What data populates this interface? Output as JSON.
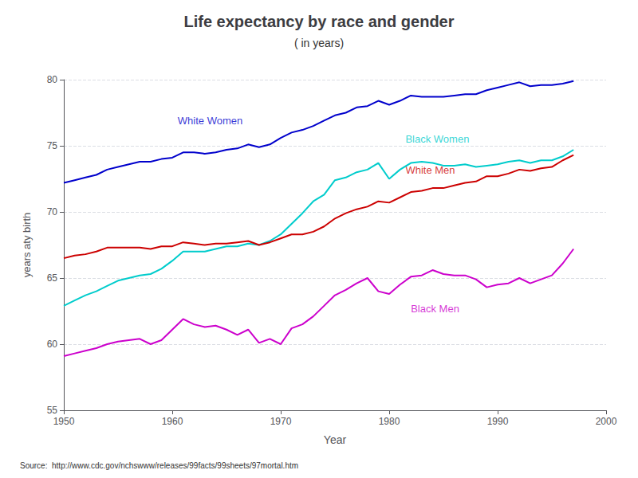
{
  "chart_data": {
    "type": "line",
    "title": "Life expectancy by race and gender",
    "subtitle": "( in years)",
    "xlabel": "Year",
    "ylabel": "years aty birth",
    "source": "Source:  http://www.cdc.gov/nchswww/releases/99facts/99sheets/97mortal.htm",
    "xlim": [
      1950,
      2000
    ],
    "ylim": [
      55,
      80
    ],
    "xticks": [
      1950,
      1960,
      1970,
      1980,
      1990,
      2000
    ],
    "yticks": [
      55,
      60,
      65,
      70,
      75,
      80
    ],
    "grid": true,
    "x": [
      1950,
      1951,
      1952,
      1953,
      1954,
      1955,
      1956,
      1957,
      1958,
      1959,
      1960,
      1961,
      1962,
      1963,
      1964,
      1965,
      1966,
      1967,
      1968,
      1969,
      1970,
      1971,
      1972,
      1973,
      1974,
      1975,
      1976,
      1977,
      1978,
      1979,
      1980,
      1981,
      1982,
      1983,
      1984,
      1985,
      1986,
      1987,
      1988,
      1989,
      1990,
      1991,
      1992,
      1993,
      1994,
      1995,
      1996,
      1997
    ],
    "series": [
      {
        "name": "White Women",
        "color": "#0000CC",
        "values": [
          72.2,
          72.4,
          72.6,
          72.8,
          73.2,
          73.4,
          73.6,
          73.8,
          73.8,
          74.0,
          74.1,
          74.5,
          74.5,
          74.4,
          74.5,
          74.7,
          74.8,
          75.1,
          74.9,
          75.1,
          75.6,
          76.0,
          76.2,
          76.5,
          76.9,
          77.3,
          77.5,
          77.9,
          78.0,
          78.4,
          78.1,
          78.4,
          78.8,
          78.7,
          78.7,
          78.7,
          78.8,
          78.9,
          78.9,
          79.2,
          79.4,
          79.6,
          79.8,
          79.5,
          79.6,
          79.6,
          79.7,
          79.9
        ]
      },
      {
        "name": "Black Women",
        "color": "#00CCCC",
        "values": [
          62.9,
          63.3,
          63.7,
          64.0,
          64.4,
          64.8,
          65.0,
          65.2,
          65.3,
          65.7,
          66.3,
          67.0,
          67.0,
          67.0,
          67.2,
          67.4,
          67.4,
          67.6,
          67.5,
          67.8,
          68.3,
          69.1,
          69.9,
          70.8,
          71.3,
          72.4,
          72.6,
          73.0,
          73.2,
          73.7,
          72.5,
          73.2,
          73.7,
          73.8,
          73.7,
          73.5,
          73.5,
          73.6,
          73.4,
          73.5,
          73.6,
          73.8,
          73.9,
          73.7,
          73.9,
          73.9,
          74.2,
          74.7
        ]
      },
      {
        "name": "White Men",
        "color": "#CC0000",
        "values": [
          66.5,
          66.7,
          66.8,
          67.0,
          67.3,
          67.3,
          67.3,
          67.3,
          67.2,
          67.4,
          67.4,
          67.7,
          67.6,
          67.5,
          67.6,
          67.6,
          67.7,
          67.8,
          67.5,
          67.7,
          68.0,
          68.3,
          68.3,
          68.5,
          68.9,
          69.5,
          69.9,
          70.2,
          70.4,
          70.8,
          70.7,
          71.1,
          71.5,
          71.6,
          71.8,
          71.8,
          72.0,
          72.2,
          72.3,
          72.7,
          72.7,
          72.9,
          73.2,
          73.1,
          73.3,
          73.4,
          73.9,
          74.3
        ]
      },
      {
        "name": "Black Men",
        "color": "#CC00CC",
        "values": [
          59.1,
          59.3,
          59.5,
          59.7,
          60.0,
          60.2,
          60.3,
          60.4,
          60.0,
          60.3,
          61.1,
          61.9,
          61.5,
          61.3,
          61.4,
          61.1,
          60.7,
          61.1,
          60.1,
          60.4,
          60.0,
          61.2,
          61.5,
          62.1,
          62.9,
          63.7,
          64.1,
          64.6,
          65.0,
          64.0,
          63.8,
          64.5,
          65.1,
          65.2,
          65.6,
          65.3,
          65.2,
          65.2,
          64.9,
          64.3,
          64.5,
          64.6,
          65.0,
          64.6,
          64.9,
          65.2,
          66.1,
          67.2
        ]
      }
    ],
    "annotations": [
      {
        "text": "White Women",
        "x": 1960.5,
        "y": 76.5,
        "color": "#0000CC"
      },
      {
        "text": "Black Women",
        "x": 1981.5,
        "y": 75.1,
        "color": "#00CCCC"
      },
      {
        "text": "White Men",
        "x": 1981.5,
        "y": 72.8,
        "color": "#CC0000"
      },
      {
        "text": "Black Men",
        "x": 1982.0,
        "y": 62.3,
        "color": "#CC00CC"
      }
    ]
  }
}
